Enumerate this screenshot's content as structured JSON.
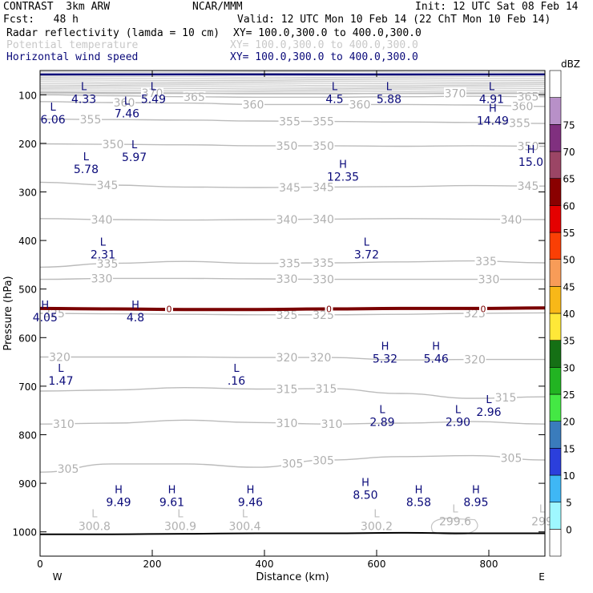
{
  "header": {
    "model": "CONTRAST  3km ARW",
    "org": "NCAR/MMM",
    "init": "Init: 12 UTC Sat 08 Feb 14",
    "fcst": "Fcst:   48 h",
    "valid": "Valid: 12 UTC Mon 10 Feb 14 (22 ChT Mon 10 Feb 14)",
    "field1": "Radar reflectivity (lamda = 10 cm)",
    "field1_xy": "XY= 100.0,300.0 to 400.0,300.0",
    "field2": "Potential temperature",
    "field2_xy": "XY= 100.0,300.0 to 400.0,300.0",
    "field3": "Horizontal wind speed",
    "field3_xy": "XY= 100.0,300.0 to 400.0,300.0"
  },
  "colors": {
    "theta": "#bbbbbb",
    "wind_label": "#0a0a7a",
    "freezing": "#7a0000",
    "ground": "#000000"
  },
  "chart_data": {
    "type": "cross-section",
    "title": "Radar reflectivity / Potential temperature / Horizontal wind speed",
    "xlabel": "Distance (km)",
    "ylabel": "Pressure (hPa)",
    "xlim": [
      0,
      900
    ],
    "ylim": [
      1050,
      50
    ],
    "x_ticks": [
      0,
      200,
      400,
      600,
      800
    ],
    "y_ticks": [
      100,
      200,
      300,
      400,
      500,
      600,
      700,
      800,
      900,
      1000
    ],
    "x_end_labels": {
      "left": "W",
      "right": "E"
    },
    "theta_isentropes": [
      {
        "value": 305,
        "pressure": [
          877,
          860,
          860,
          867,
          852,
          845,
          843,
          852
        ],
        "labels": [
          {
            "x": 50,
            "text": "305"
          },
          {
            "x": 450,
            "text": "305"
          },
          {
            "x": 505,
            "text": "305"
          },
          {
            "x": 840,
            "text": "305"
          }
        ]
      },
      {
        "value": 310,
        "pressure": [
          778,
          776,
          770,
          775,
          778,
          776,
          773,
          778
        ],
        "labels": [
          {
            "x": 42,
            "text": "310"
          },
          {
            "x": 440,
            "text": "310"
          },
          {
            "x": 520,
            "text": "310"
          }
        ]
      },
      {
        "value": 315,
        "pressure": [
          710,
          708,
          703,
          706,
          705,
          715,
          725,
          722
        ],
        "labels": [
          {
            "x": 440,
            "text": "315"
          },
          {
            "x": 510,
            "text": "315"
          },
          {
            "x": 830,
            "text": "315"
          }
        ]
      },
      {
        "value": 320,
        "pressure": [
          640,
          640,
          640,
          641,
          641,
          646,
          645,
          645
        ],
        "labels": [
          {
            "x": 35,
            "text": "320"
          },
          {
            "x": 440,
            "text": "320"
          },
          {
            "x": 500,
            "text": "320"
          },
          {
            "x": 775,
            "text": "320"
          }
        ]
      },
      {
        "value": 325,
        "pressure": [
          550,
          551,
          552,
          553,
          553,
          552,
          550,
          549
        ],
        "labels": [
          {
            "x": 25,
            "text": "325"
          },
          {
            "x": 440,
            "text": "325"
          },
          {
            "x": 505,
            "text": "325"
          },
          {
            "x": 775,
            "text": "325"
          }
        ]
      },
      {
        "value": 330,
        "pressure": [
          480,
          478,
          478,
          479,
          480,
          480,
          480,
          480
        ],
        "labels": [
          {
            "x": 110,
            "text": "330"
          },
          {
            "x": 440,
            "text": "330"
          },
          {
            "x": 505,
            "text": "330"
          },
          {
            "x": 800,
            "text": "330"
          }
        ]
      },
      {
        "value": 335,
        "pressure": [
          455,
          447,
          443,
          447,
          446,
          444,
          442,
          446
        ],
        "labels": [
          {
            "x": 120,
            "text": "335"
          },
          {
            "x": 445,
            "text": "335"
          },
          {
            "x": 505,
            "text": "335"
          },
          {
            "x": 795,
            "text": "335"
          }
        ]
      },
      {
        "value": 340,
        "pressure": [
          355,
          357,
          358,
          357,
          356,
          355,
          356,
          357
        ],
        "labels": [
          {
            "x": 110,
            "text": "340"
          },
          {
            "x": 440,
            "text": "340"
          },
          {
            "x": 505,
            "text": "340"
          },
          {
            "x": 840,
            "text": "340"
          }
        ]
      },
      {
        "value": 345,
        "pressure": [
          280,
          286,
          290,
          291,
          290,
          289,
          287,
          288
        ],
        "labels": [
          {
            "x": 120,
            "text": "345"
          },
          {
            "x": 445,
            "text": "345"
          },
          {
            "x": 505,
            "text": "345"
          },
          {
            "x": 870,
            "text": "345"
          }
        ]
      },
      {
        "value": 350,
        "pressure": [
          201,
          202,
          203,
          205,
          205,
          206,
          205,
          206
        ],
        "labels": [
          {
            "x": 130,
            "text": "350"
          },
          {
            "x": 440,
            "text": "350"
          },
          {
            "x": 505,
            "text": "350"
          },
          {
            "x": 870,
            "text": "350"
          }
        ]
      },
      {
        "value": 355,
        "pressure": [
          150,
          151,
          152,
          154,
          155,
          156,
          157,
          159
        ],
        "labels": [
          {
            "x": 90,
            "text": "355"
          },
          {
            "x": 445,
            "text": "355"
          },
          {
            "x": 505,
            "text": "355"
          },
          {
            "x": 855,
            "text": "355"
          }
        ]
      },
      {
        "value": 360,
        "pressure": [
          114,
          116,
          117,
          120,
          120,
          120,
          121,
          124
        ],
        "labels": [
          {
            "x": 150,
            "text": "360"
          },
          {
            "x": 380,
            "text": "360"
          },
          {
            "x": 570,
            "text": "360"
          },
          {
            "x": 860,
            "text": "360"
          }
        ]
      },
      {
        "value": 365,
        "pressure": [
          100,
          102,
          104,
          105,
          105,
          104,
          103,
          104
        ],
        "labels": [
          {
            "x": 275,
            "text": "365"
          },
          {
            "x": 870,
            "text": "365"
          }
        ]
      },
      {
        "value": 370,
        "pressure": [
          95,
          96,
          97,
          98,
          98,
          97,
          97,
          97
        ],
        "labels": [
          {
            "x": 200,
            "text": "370"
          },
          {
            "x": 740,
            "text": "370"
          }
        ]
      }
    ],
    "freezing_level_hPa": [
      540,
      541,
      542,
      542,
      541,
      540,
      540,
      539
    ],
    "ground_pressure_hPa": [
      1005,
      1005,
      1004,
      1003,
      1003,
      1002,
      1003,
      1003
    ],
    "wind_extrema": [
      {
        "type": "L",
        "x": 78,
        "p": 110,
        "value": "4.33"
      },
      {
        "type": "L",
        "x": 23,
        "p": 152,
        "value": "6.06"
      },
      {
        "type": "L",
        "x": 155,
        "p": 140,
        "value": "7.46"
      },
      {
        "type": "L",
        "x": 202,
        "p": 110,
        "value": "5.49"
      },
      {
        "type": "L",
        "x": 525,
        "p": 110,
        "value": "4.5"
      },
      {
        "type": "L",
        "x": 622,
        "p": 110,
        "value": "5.88"
      },
      {
        "type": "L",
        "x": 805,
        "p": 110,
        "value": "4.91"
      },
      {
        "type": "H",
        "x": 807,
        "p": 155,
        "value": "14.49"
      },
      {
        "type": "L",
        "x": 82,
        "p": 255,
        "value": "5.78"
      },
      {
        "type": "L",
        "x": 168,
        "p": 230,
        "value": "5.97"
      },
      {
        "type": "H",
        "x": 540,
        "p": 270,
        "value": "12.35"
      },
      {
        "type": "H",
        "x": 875,
        "p": 240,
        "value": "15.0"
      },
      {
        "type": "L",
        "x": 112,
        "p": 430,
        "value": "2.31"
      },
      {
        "type": "L",
        "x": 582,
        "p": 430,
        "value": "3.72"
      },
      {
        "type": "H",
        "x": 9,
        "p": 560,
        "value": "4.05"
      },
      {
        "type": "H",
        "x": 170,
        "p": 560,
        "value": "4.8"
      },
      {
        "type": "H",
        "x": 615,
        "p": 645,
        "value": "5.32"
      },
      {
        "type": "H",
        "x": 706,
        "p": 645,
        "value": "5.46"
      },
      {
        "type": "L",
        "x": 37,
        "p": 690,
        "value": "1.47"
      },
      {
        "type": "L",
        "x": 350,
        "p": 690,
        "value": ".16"
      },
      {
        "type": "L",
        "x": 800,
        "p": 755,
        "value": "2.96"
      },
      {
        "type": "L",
        "x": 610,
        "p": 775,
        "value": "2.89"
      },
      {
        "type": "L",
        "x": 745,
        "p": 775,
        "value": "2.90"
      },
      {
        "type": "H",
        "x": 140,
        "p": 940,
        "value": "9.49"
      },
      {
        "type": "H",
        "x": 235,
        "p": 940,
        "value": "9.61"
      },
      {
        "type": "H",
        "x": 375,
        "p": 940,
        "value": "9.46"
      },
      {
        "type": "H",
        "x": 580,
        "p": 925,
        "value": "8.50"
      },
      {
        "type": "H",
        "x": 675,
        "p": 940,
        "value": "8.58"
      },
      {
        "type": "H",
        "x": 777,
        "p": 940,
        "value": "8.95"
      }
    ],
    "theta_extrema": [
      {
        "type": "L",
        "x": 97,
        "p": 990,
        "value": "300.8"
      },
      {
        "type": "L",
        "x": 250,
        "p": 990,
        "value": "300.9"
      },
      {
        "type": "L",
        "x": 365,
        "p": 990,
        "value": "300.4"
      },
      {
        "type": "L",
        "x": 600,
        "p": 990,
        "value": "300.2"
      },
      {
        "type": "L",
        "x": 740,
        "p": 980,
        "value": "299.6"
      },
      {
        "type": "L",
        "x": 895,
        "p": 980,
        "value": "299"
      }
    ],
    "freezing_labels": [
      {
        "x": 230,
        "text": "0"
      },
      {
        "x": 515,
        "text": "0"
      },
      {
        "x": 790,
        "text": "0"
      }
    ],
    "colorbar": {
      "unit": "dBZ",
      "levels": [
        0,
        5,
        10,
        15,
        20,
        25,
        30,
        35,
        40,
        45,
        50,
        55,
        60,
        65,
        70,
        75
      ],
      "colors": [
        "#ffffff",
        "#9ff8ff",
        "#3fb7f5",
        "#2b3fdc",
        "#3a7cbc",
        "#44e844",
        "#22b422",
        "#157015",
        "#ffe838",
        "#f8b818",
        "#f89c58",
        "#fa3f05",
        "#e40000",
        "#8a0000",
        "#9b4565",
        "#80307f",
        "#b890c8",
        "#ffffff"
      ]
    }
  }
}
